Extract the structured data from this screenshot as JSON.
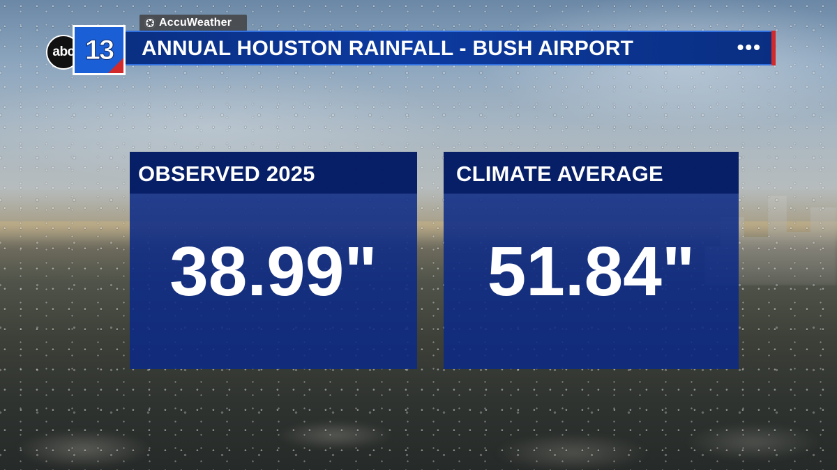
{
  "header": {
    "sponsor": "AccuWeather",
    "title": "ANNUAL HOUSTON RAINFALL - BUSH AIRPORT",
    "menu": "•••"
  },
  "logo": {
    "network": "abc",
    "channel": "13"
  },
  "stats": [
    {
      "label": "OBSERVED 2025",
      "value": "38.99\""
    },
    {
      "label": "CLIMATE AVERAGE",
      "value": "51.84\""
    }
  ],
  "colors": {
    "bar_blue": "#0c3aa0",
    "panel_blue": "#0c2a87",
    "accent_red": "#d22a2a",
    "logo_blue": "#1b5fd6"
  }
}
